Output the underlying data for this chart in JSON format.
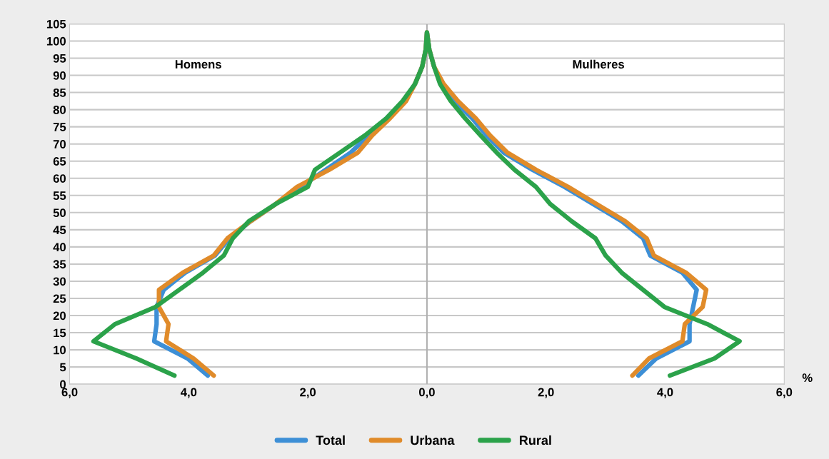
{
  "chart_data": {
    "type": "line",
    "xlim": [
      -6,
      6
    ],
    "ylim": [
      0,
      105
    ],
    "xticks": [
      {
        "value": -6,
        "label": "6,0"
      },
      {
        "value": -4,
        "label": "4,0"
      },
      {
        "value": -2,
        "label": "2,0"
      },
      {
        "value": 0,
        "label": "0,0"
      },
      {
        "value": 2,
        "label": "2,0"
      },
      {
        "value": 4,
        "label": "4,0"
      },
      {
        "value": 6,
        "label": "6,0"
      }
    ],
    "yticks": [
      0,
      5,
      10,
      15,
      20,
      25,
      30,
      35,
      40,
      45,
      50,
      55,
      60,
      65,
      70,
      75,
      80,
      85,
      90,
      95,
      100,
      105
    ],
    "grid": "y",
    "legend": "bottom",
    "marker": "none",
    "line_style": "solid",
    "ref_lines": [
      {
        "axis": "x",
        "value": 0,
        "color": "#b0b0b0"
      }
    ],
    "annotations": [
      "Homens",
      "Mulheres",
      "%"
    ],
    "series": [
      {
        "name": "Total",
        "color": "#3d8fd6",
        "x": [
          -3.68,
          -4.02,
          -4.58,
          -4.54,
          -4.54,
          -4.42,
          -4.06,
          -3.56,
          -3.32,
          -2.96,
          -2.54,
          -2.12,
          -1.7,
          -1.28,
          -0.98,
          -0.68,
          -0.38,
          -0.2,
          -0.08,
          -0.02,
          0,
          0.04,
          0.12,
          0.25,
          0.46,
          0.76,
          1.0,
          1.29,
          1.77,
          2.31,
          2.79,
          3.27,
          3.63,
          3.75,
          4.29,
          4.53,
          4.47,
          4.41,
          4.41,
          3.85,
          3.55
        ],
        "values": [
          2.5,
          7.5,
          12.5,
          17.5,
          22.5,
          27.5,
          32.5,
          37.5,
          42.5,
          47.5,
          52.5,
          57.5,
          62.5,
          67.5,
          72.5,
          77.5,
          82.5,
          87.5,
          92.5,
          97.5,
          102.5,
          97.5,
          92.5,
          87.5,
          82.5,
          77.5,
          72.5,
          67.5,
          62.5,
          57.5,
          52.5,
          47.5,
          42.5,
          37.5,
          32.5,
          27.5,
          22.5,
          17.5,
          12.5,
          7.5,
          2.5
        ]
      },
      {
        "name": "Urbana",
        "color": "#e08b2a",
        "x": [
          -3.58,
          -3.92,
          -4.38,
          -4.34,
          -4.5,
          -4.5,
          -4.1,
          -3.58,
          -3.35,
          -2.96,
          -2.54,
          -2.18,
          -1.64,
          -1.16,
          -0.92,
          -0.62,
          -0.35,
          -0.2,
          -0.08,
          -0.02,
          0,
          0.04,
          0.12,
          0.28,
          0.52,
          0.82,
          1.06,
          1.35,
          1.83,
          2.37,
          2.85,
          3.33,
          3.69,
          3.81,
          4.35,
          4.69,
          4.63,
          4.33,
          4.29,
          3.73,
          3.45
        ],
        "values": [
          2.5,
          7.5,
          12.5,
          17.5,
          22.5,
          27.5,
          32.5,
          37.5,
          42.5,
          47.5,
          52.5,
          57.5,
          62.5,
          67.5,
          72.5,
          77.5,
          82.5,
          87.5,
          92.5,
          97.5,
          102.5,
          97.5,
          92.5,
          87.5,
          82.5,
          77.5,
          72.5,
          67.5,
          62.5,
          57.5,
          52.5,
          47.5,
          42.5,
          37.5,
          32.5,
          27.5,
          22.5,
          17.5,
          12.5,
          7.5,
          2.5
        ]
      },
      {
        "name": "Rural",
        "color": "#2ba24a",
        "x": [
          -4.24,
          -4.88,
          -5.6,
          -5.24,
          -4.56,
          -4.16,
          -3.76,
          -3.41,
          -3.26,
          -2.99,
          -2.54,
          -2.0,
          -1.88,
          -1.46,
          -1.04,
          -0.68,
          -0.41,
          -0.2,
          -0.08,
          -0.02,
          0,
          0.04,
          0.12,
          0.22,
          0.4,
          0.64,
          0.9,
          1.17,
          1.47,
          1.83,
          2.07,
          2.43,
          2.83,
          3.0,
          3.27,
          3.63,
          3.99,
          4.71,
          5.25,
          4.83,
          4.08
        ],
        "values": [
          2.5,
          7.5,
          12.5,
          17.5,
          22.5,
          27.5,
          32.5,
          37.5,
          42.5,
          47.5,
          52.5,
          57.5,
          62.5,
          67.5,
          72.5,
          77.5,
          82.5,
          87.5,
          92.5,
          97.5,
          102.5,
          97.5,
          92.5,
          87.5,
          82.5,
          77.5,
          72.5,
          67.5,
          62.5,
          57.5,
          52.5,
          47.5,
          42.5,
          37.5,
          32.5,
          27.5,
          22.5,
          17.5,
          12.5,
          7.5,
          2.5
        ]
      }
    ]
  }
}
